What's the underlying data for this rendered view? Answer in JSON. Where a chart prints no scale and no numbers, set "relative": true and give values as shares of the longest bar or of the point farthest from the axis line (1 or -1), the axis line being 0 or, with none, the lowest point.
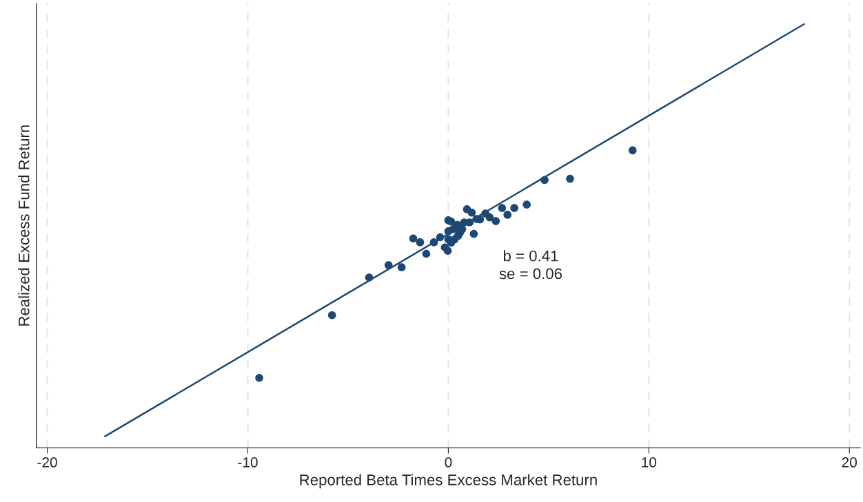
{
  "chart_data": {
    "type": "scatter",
    "relative": true,
    "xlabel": "Reported Beta Times Excess Market Return",
    "ylabel": "Realized Excess Fund Return",
    "xlim": [
      -20.55,
      20.55
    ],
    "xticks": [
      {
        "value": -20,
        "label": "-20"
      },
      {
        "value": -10,
        "label": "-10"
      },
      0,
      10,
      20
    ],
    "grid": "x",
    "tick_labels": "x",
    "annotations": [
      "b = 0.41",
      "se = 0.06"
    ],
    "series": [
      {
        "color": "#1d4873",
        "marker": "circle",
        "x": [
          -9.43,
          -5.8,
          -3.95,
          -2.98,
          -2.33,
          -1.75,
          -1.41,
          -1.1,
          -0.72,
          -0.41,
          -0.17,
          -0.03,
          0.0,
          0.0,
          0.0,
          0.14,
          0.14,
          0.24,
          0.31,
          0.45,
          0.48,
          0.58,
          0.69,
          0.79,
          0.93,
          1.06,
          1.17,
          1.27,
          1.41,
          1.58,
          1.85,
          2.06,
          2.37,
          2.68,
          2.95,
          3.29,
          3.91,
          4.8,
          6.07,
          9.19
        ],
        "values": [
          0.165,
          0.313,
          0.402,
          0.431,
          0.426,
          0.494,
          0.485,
          0.458,
          0.485,
          0.497,
          0.473,
          0.465,
          0.492,
          0.511,
          0.537,
          0.534,
          0.484,
          0.516,
          0.492,
          0.526,
          0.5,
          0.508,
          0.516,
          0.532,
          0.563,
          0.532,
          0.555,
          0.505,
          0.54,
          0.539,
          0.553,
          0.544,
          0.535,
          0.566,
          0.55,
          0.566,
          0.574,
          0.632,
          0.635,
          0.702
        ]
      },
      {
        "type": "line",
        "color": "#1d4873",
        "x": [
          -17.12,
          17.74
        ],
        "values": [
          0.027,
          1.0
        ],
        "marker": "none",
        "line_style": "solid"
      }
    ]
  }
}
